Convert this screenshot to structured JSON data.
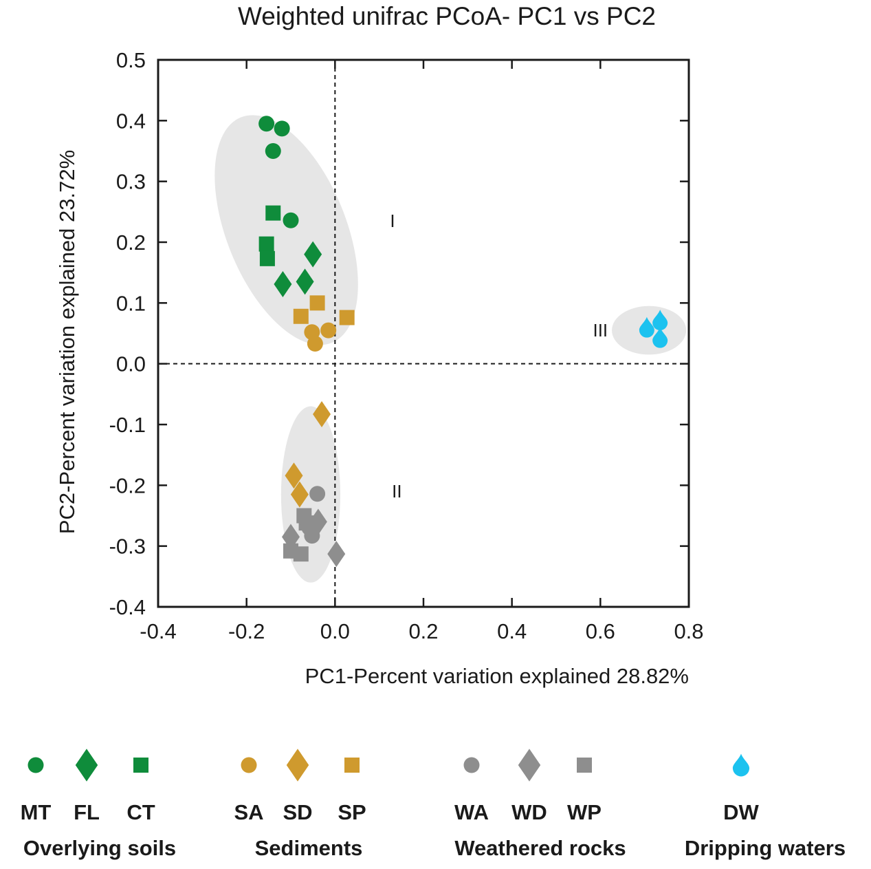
{
  "chart_data": {
    "type": "scatter",
    "title": "Weighted unifrac PCoA- PC1 vs PC2",
    "xlabel": "PC1-Percent variation explained 28.82%",
    "ylabel": "PC2-Percent variation explained 23.72%",
    "xlim": [
      -0.4,
      0.8
    ],
    "ylim": [
      -0.4,
      0.5
    ],
    "xticks": [
      "-0.4",
      "-0.2",
      "0.0",
      "0.2",
      "0.4",
      "0.6",
      "0.8"
    ],
    "yticks": [
      "0.5",
      "0.4",
      "0.3",
      "0.2",
      "0.1",
      "0.0",
      "-0.1",
      "-0.2",
      "-0.3",
      "-0.4"
    ],
    "reference_lines": {
      "x": 0,
      "y": 0,
      "style": "dashed"
    },
    "clusters": [
      {
        "label": "I",
        "center": [
          -0.11,
          0.22
        ],
        "rx": 0.135,
        "ry": 0.2,
        "angle_deg": -22,
        "label_pos": [
          0.13,
          0.235
        ]
      },
      {
        "label": "II",
        "center": [
          -0.055,
          -0.215
        ],
        "rx": 0.067,
        "ry": 0.145,
        "angle_deg": 0,
        "label_pos": [
          0.14,
          -0.21
        ]
      },
      {
        "label": "III",
        "center": [
          0.71,
          0.055
        ],
        "rx": 0.084,
        "ry": 0.04,
        "angle_deg": 0,
        "label_pos": [
          0.6,
          0.055
        ]
      }
    ],
    "series": [
      {
        "name": "MT",
        "color": "#0f8c3b",
        "shape": "circle",
        "points": [
          [
            -0.155,
            0.395
          ],
          [
            -0.12,
            0.387
          ],
          [
            -0.14,
            0.35
          ],
          [
            -0.1,
            0.236
          ]
        ]
      },
      {
        "name": "FL",
        "color": "#0f8c3b",
        "shape": "diamond",
        "points": [
          [
            -0.05,
            0.18
          ],
          [
            -0.118,
            0.131
          ],
          [
            -0.068,
            0.135
          ]
        ]
      },
      {
        "name": "CT",
        "color": "#0f8c3b",
        "shape": "square",
        "points": [
          [
            -0.14,
            0.248
          ],
          [
            -0.155,
            0.197
          ],
          [
            -0.153,
            0.173
          ]
        ]
      },
      {
        "name": "SA",
        "color": "#cf9a2e",
        "shape": "circle",
        "points": [
          [
            -0.052,
            0.052
          ],
          [
            -0.015,
            0.055
          ],
          [
            -0.045,
            0.033
          ]
        ]
      },
      {
        "name": "SD",
        "color": "#cf9a2e",
        "shape": "diamond",
        "points": [
          [
            -0.03,
            -0.083
          ],
          [
            -0.093,
            -0.184
          ],
          [
            -0.08,
            -0.215
          ]
        ]
      },
      {
        "name": "SP",
        "color": "#cf9a2e",
        "shape": "square",
        "points": [
          [
            -0.04,
            0.1
          ],
          [
            -0.077,
            0.078
          ],
          [
            0.027,
            0.076
          ]
        ]
      },
      {
        "name": "WA",
        "color": "#8e8e8e",
        "shape": "circle",
        "points": [
          [
            -0.04,
            -0.214
          ],
          [
            -0.052,
            -0.283
          ],
          [
            -0.058,
            -0.27
          ]
        ]
      },
      {
        "name": "WD",
        "color": "#8e8e8e",
        "shape": "diamond",
        "points": [
          [
            -0.038,
            -0.26
          ],
          [
            -0.1,
            -0.285
          ],
          [
            0.003,
            -0.313
          ]
        ]
      },
      {
        "name": "WP",
        "color": "#8e8e8e",
        "shape": "square",
        "points": [
          [
            -0.07,
            -0.25
          ],
          [
            -0.065,
            -0.262
          ],
          [
            -0.1,
            -0.308
          ],
          [
            -0.077,
            -0.313
          ]
        ]
      },
      {
        "name": "DW",
        "color": "#1cc2ef",
        "shape": "drop",
        "points": [
          [
            0.705,
            0.06
          ],
          [
            0.735,
            0.072
          ],
          [
            0.735,
            0.043
          ]
        ]
      }
    ],
    "legend": {
      "placement": "bottom",
      "groups": [
        {
          "name": "Overlying soils",
          "items": [
            "MT",
            "FL",
            "CT"
          ]
        },
        {
          "name": "Sediments",
          "items": [
            "SA",
            "SD",
            "SP"
          ]
        },
        {
          "name": "Weathered rocks",
          "items": [
            "WA",
            "WD",
            "WP"
          ]
        },
        {
          "name": "Dripping waters",
          "items": [
            "DW"
          ]
        }
      ]
    }
  }
}
